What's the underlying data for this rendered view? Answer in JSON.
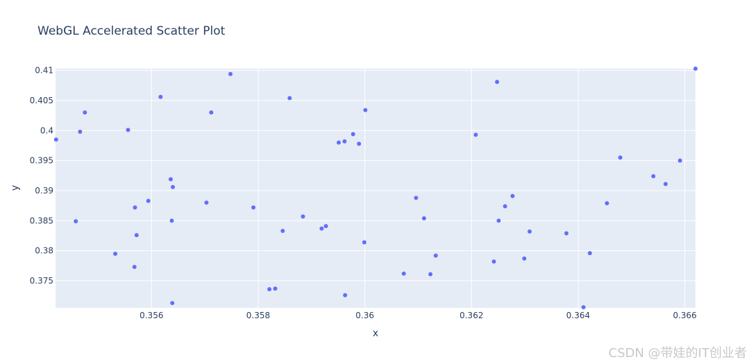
{
  "chart_data": {
    "type": "scatter",
    "title": "WebGL Accelerated Scatter Plot",
    "xlabel": "x",
    "ylabel": "y",
    "xlim": [
      0.3542,
      0.3662
    ],
    "ylim": [
      0.3705,
      0.4103
    ],
    "xticks": [
      0.356,
      0.358,
      0.36,
      0.362,
      0.364,
      0.366
    ],
    "xtick_labels": [
      "0.356",
      "0.358",
      "0.36",
      "0.362",
      "0.364",
      "0.366"
    ],
    "yticks": [
      0.375,
      0.38,
      0.385,
      0.39,
      0.395,
      0.4,
      0.405,
      0.41
    ],
    "ytick_labels": [
      "0.375",
      "0.38",
      "0.385",
      "0.39",
      "0.395",
      "0.4",
      "0.405",
      "0.41"
    ],
    "grid": true,
    "marker_color": "#636efa",
    "plot_bg": "#e5ecf6",
    "points": [
      [
        0.35421,
        0.3985
      ],
      [
        0.35458,
        0.3849
      ],
      [
        0.35466,
        0.3998
      ],
      [
        0.35475,
        0.403
      ],
      [
        0.35532,
        0.3795
      ],
      [
        0.35556,
        0.4001
      ],
      [
        0.35568,
        0.3773
      ],
      [
        0.35569,
        0.3872
      ],
      [
        0.35572,
        0.3826
      ],
      [
        0.35594,
        0.3883
      ],
      [
        0.35617,
        0.4056
      ],
      [
        0.35636,
        0.3919
      ],
      [
        0.35638,
        0.385
      ],
      [
        0.35639,
        0.3713
      ],
      [
        0.3564,
        0.3906
      ],
      [
        0.35703,
        0.388
      ],
      [
        0.35712,
        0.403
      ],
      [
        0.35748,
        0.4094
      ],
      [
        0.35791,
        0.3872
      ],
      [
        0.35821,
        0.3736
      ],
      [
        0.35832,
        0.3737
      ],
      [
        0.35846,
        0.3833
      ],
      [
        0.35859,
        0.4054
      ],
      [
        0.35884,
        0.3857
      ],
      [
        0.35919,
        0.3837
      ],
      [
        0.35927,
        0.3841
      ],
      [
        0.35951,
        0.398
      ],
      [
        0.35962,
        0.3982
      ],
      [
        0.35963,
        0.3726
      ],
      [
        0.35978,
        0.3994
      ],
      [
        0.35989,
        0.3978
      ],
      [
        0.35999,
        0.3814
      ],
      [
        0.36001,
        0.4034
      ],
      [
        0.36073,
        0.3762
      ],
      [
        0.36096,
        0.3888
      ],
      [
        0.36111,
        0.3854
      ],
      [
        0.36123,
        0.3761
      ],
      [
        0.36133,
        0.3792
      ],
      [
        0.36208,
        0.3993
      ],
      [
        0.36242,
        0.3782
      ],
      [
        0.36248,
        0.4081
      ],
      [
        0.36251,
        0.385
      ],
      [
        0.36263,
        0.3874
      ],
      [
        0.36277,
        0.3891
      ],
      [
        0.36299,
        0.3787
      ],
      [
        0.36309,
        0.3832
      ],
      [
        0.36378,
        0.3829
      ],
      [
        0.3641,
        0.3706
      ],
      [
        0.36422,
        0.3796
      ],
      [
        0.36454,
        0.3879
      ],
      [
        0.36479,
        0.3955
      ],
      [
        0.36541,
        0.3924
      ],
      [
        0.36564,
        0.3911
      ],
      [
        0.36591,
        0.395
      ],
      [
        0.36622,
        0.4103
      ]
    ]
  },
  "watermark": "CSDN @带娃的IT创业者"
}
